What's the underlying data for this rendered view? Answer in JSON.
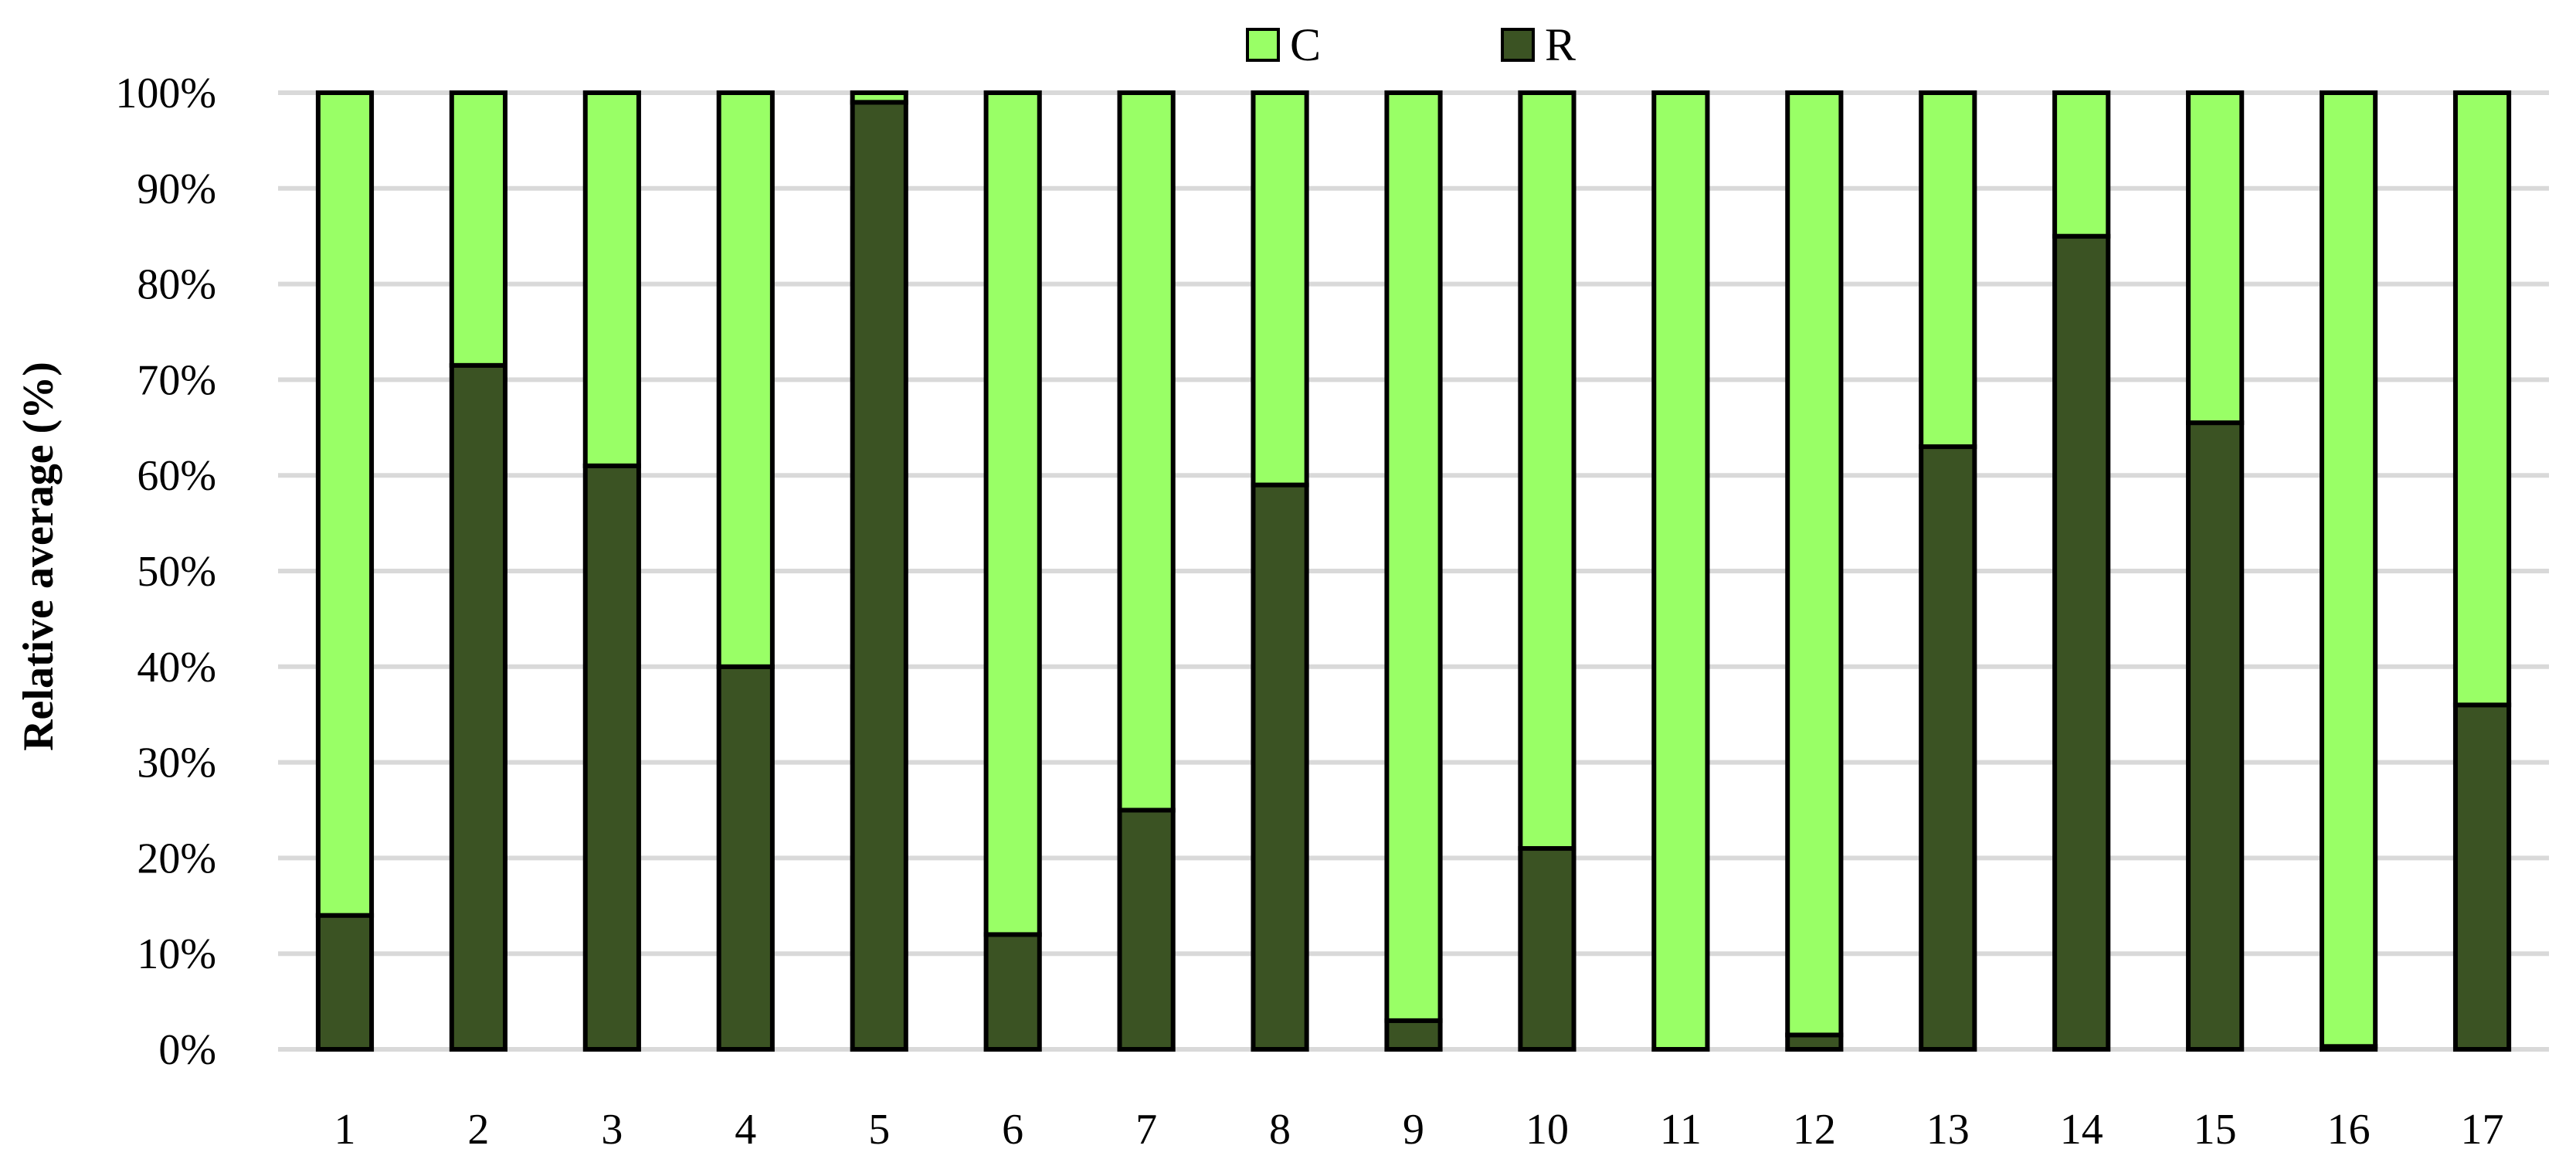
{
  "chart_data": {
    "type": "bar",
    "stacked": true,
    "categories": [
      "1",
      "2",
      "3",
      "4",
      "5",
      "6",
      "7",
      "8",
      "9",
      "10",
      "11",
      "12",
      "13",
      "14",
      "15",
      "16",
      "17"
    ],
    "series": [
      {
        "name": "R",
        "color": "#3b5323",
        "values": [
          14,
          71.5,
          61,
          40,
          99,
          12,
          25,
          59,
          3,
          21,
          0,
          1.5,
          63,
          85,
          65.5,
          0.3,
          36
        ]
      },
      {
        "name": "C",
        "color": "#99ff66",
        "values": [
          86,
          28.5,
          39,
          60,
          1,
          88,
          75,
          41,
          97,
          79,
          100,
          98.5,
          37,
          15,
          34.5,
          99.7,
          64
        ]
      }
    ],
    "legend_order": [
      "C",
      "R"
    ],
    "legend_position": "top-center",
    "ylabel": "Relative average (%)",
    "xlabel": "",
    "yticks": [
      "0%",
      "10%",
      "20%",
      "30%",
      "40%",
      "50%",
      "60%",
      "70%",
      "80%",
      "90%",
      "100%"
    ],
    "ylim": [
      0,
      100
    ],
    "grid": true
  }
}
